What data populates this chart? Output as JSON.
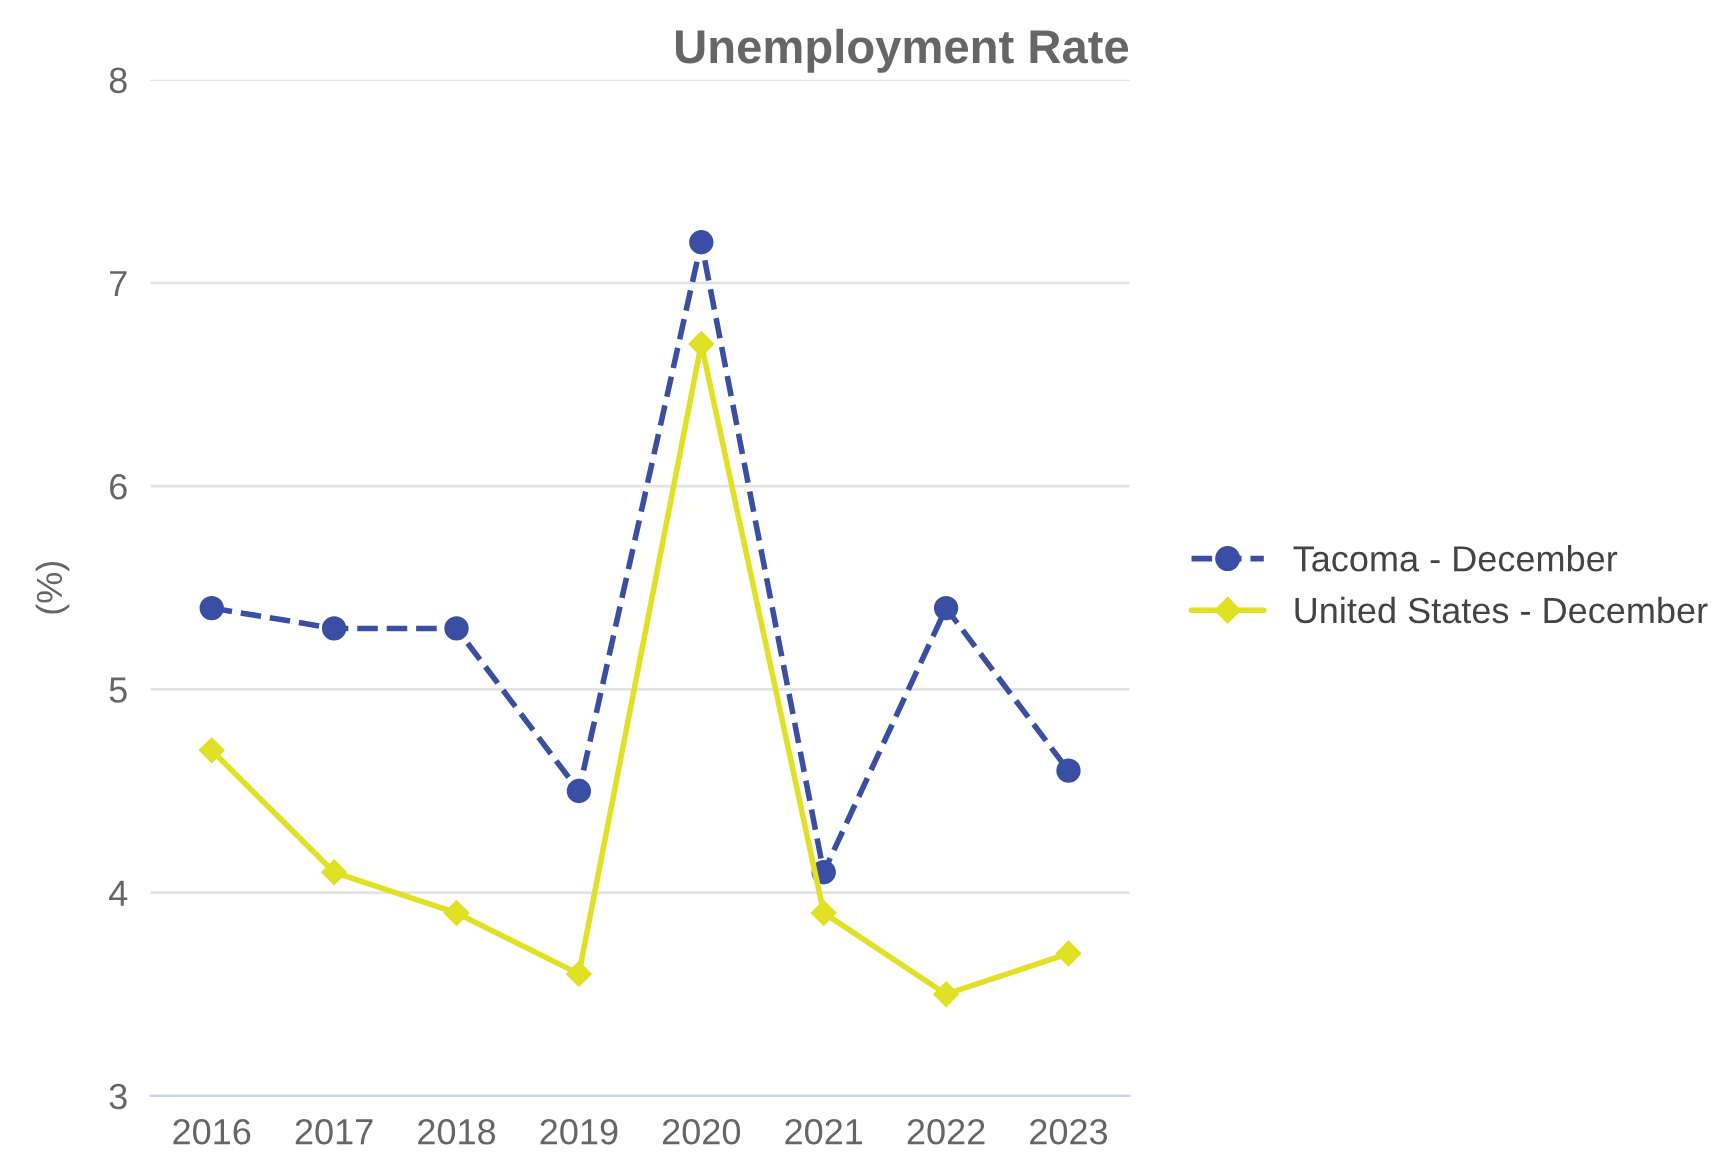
{
  "chart_data": {
    "type": "line",
    "title": "Unemployment Rate",
    "ylabel": "(%)",
    "categories": [
      "2016",
      "2017",
      "2018",
      "2019",
      "2020",
      "2021",
      "2022",
      "2023"
    ],
    "series": [
      {
        "name": "Tacoma - December",
        "color": "#3a4fa3",
        "marker": "circle",
        "line_style": "dashed",
        "values": [
          5.4,
          5.3,
          5.3,
          4.5,
          7.2,
          4.1,
          5.4,
          4.6
        ]
      },
      {
        "name": "United States - December",
        "color": "#e0e024",
        "marker": "diamond",
        "line_style": "solid",
        "values": [
          4.7,
          4.1,
          3.9,
          3.6,
          6.7,
          3.9,
          3.5,
          3.7
        ]
      }
    ],
    "ylim": [
      3,
      8
    ],
    "yticks": [
      3,
      4,
      5,
      6,
      7,
      8
    ],
    "grid": "y",
    "legend": "right"
  }
}
